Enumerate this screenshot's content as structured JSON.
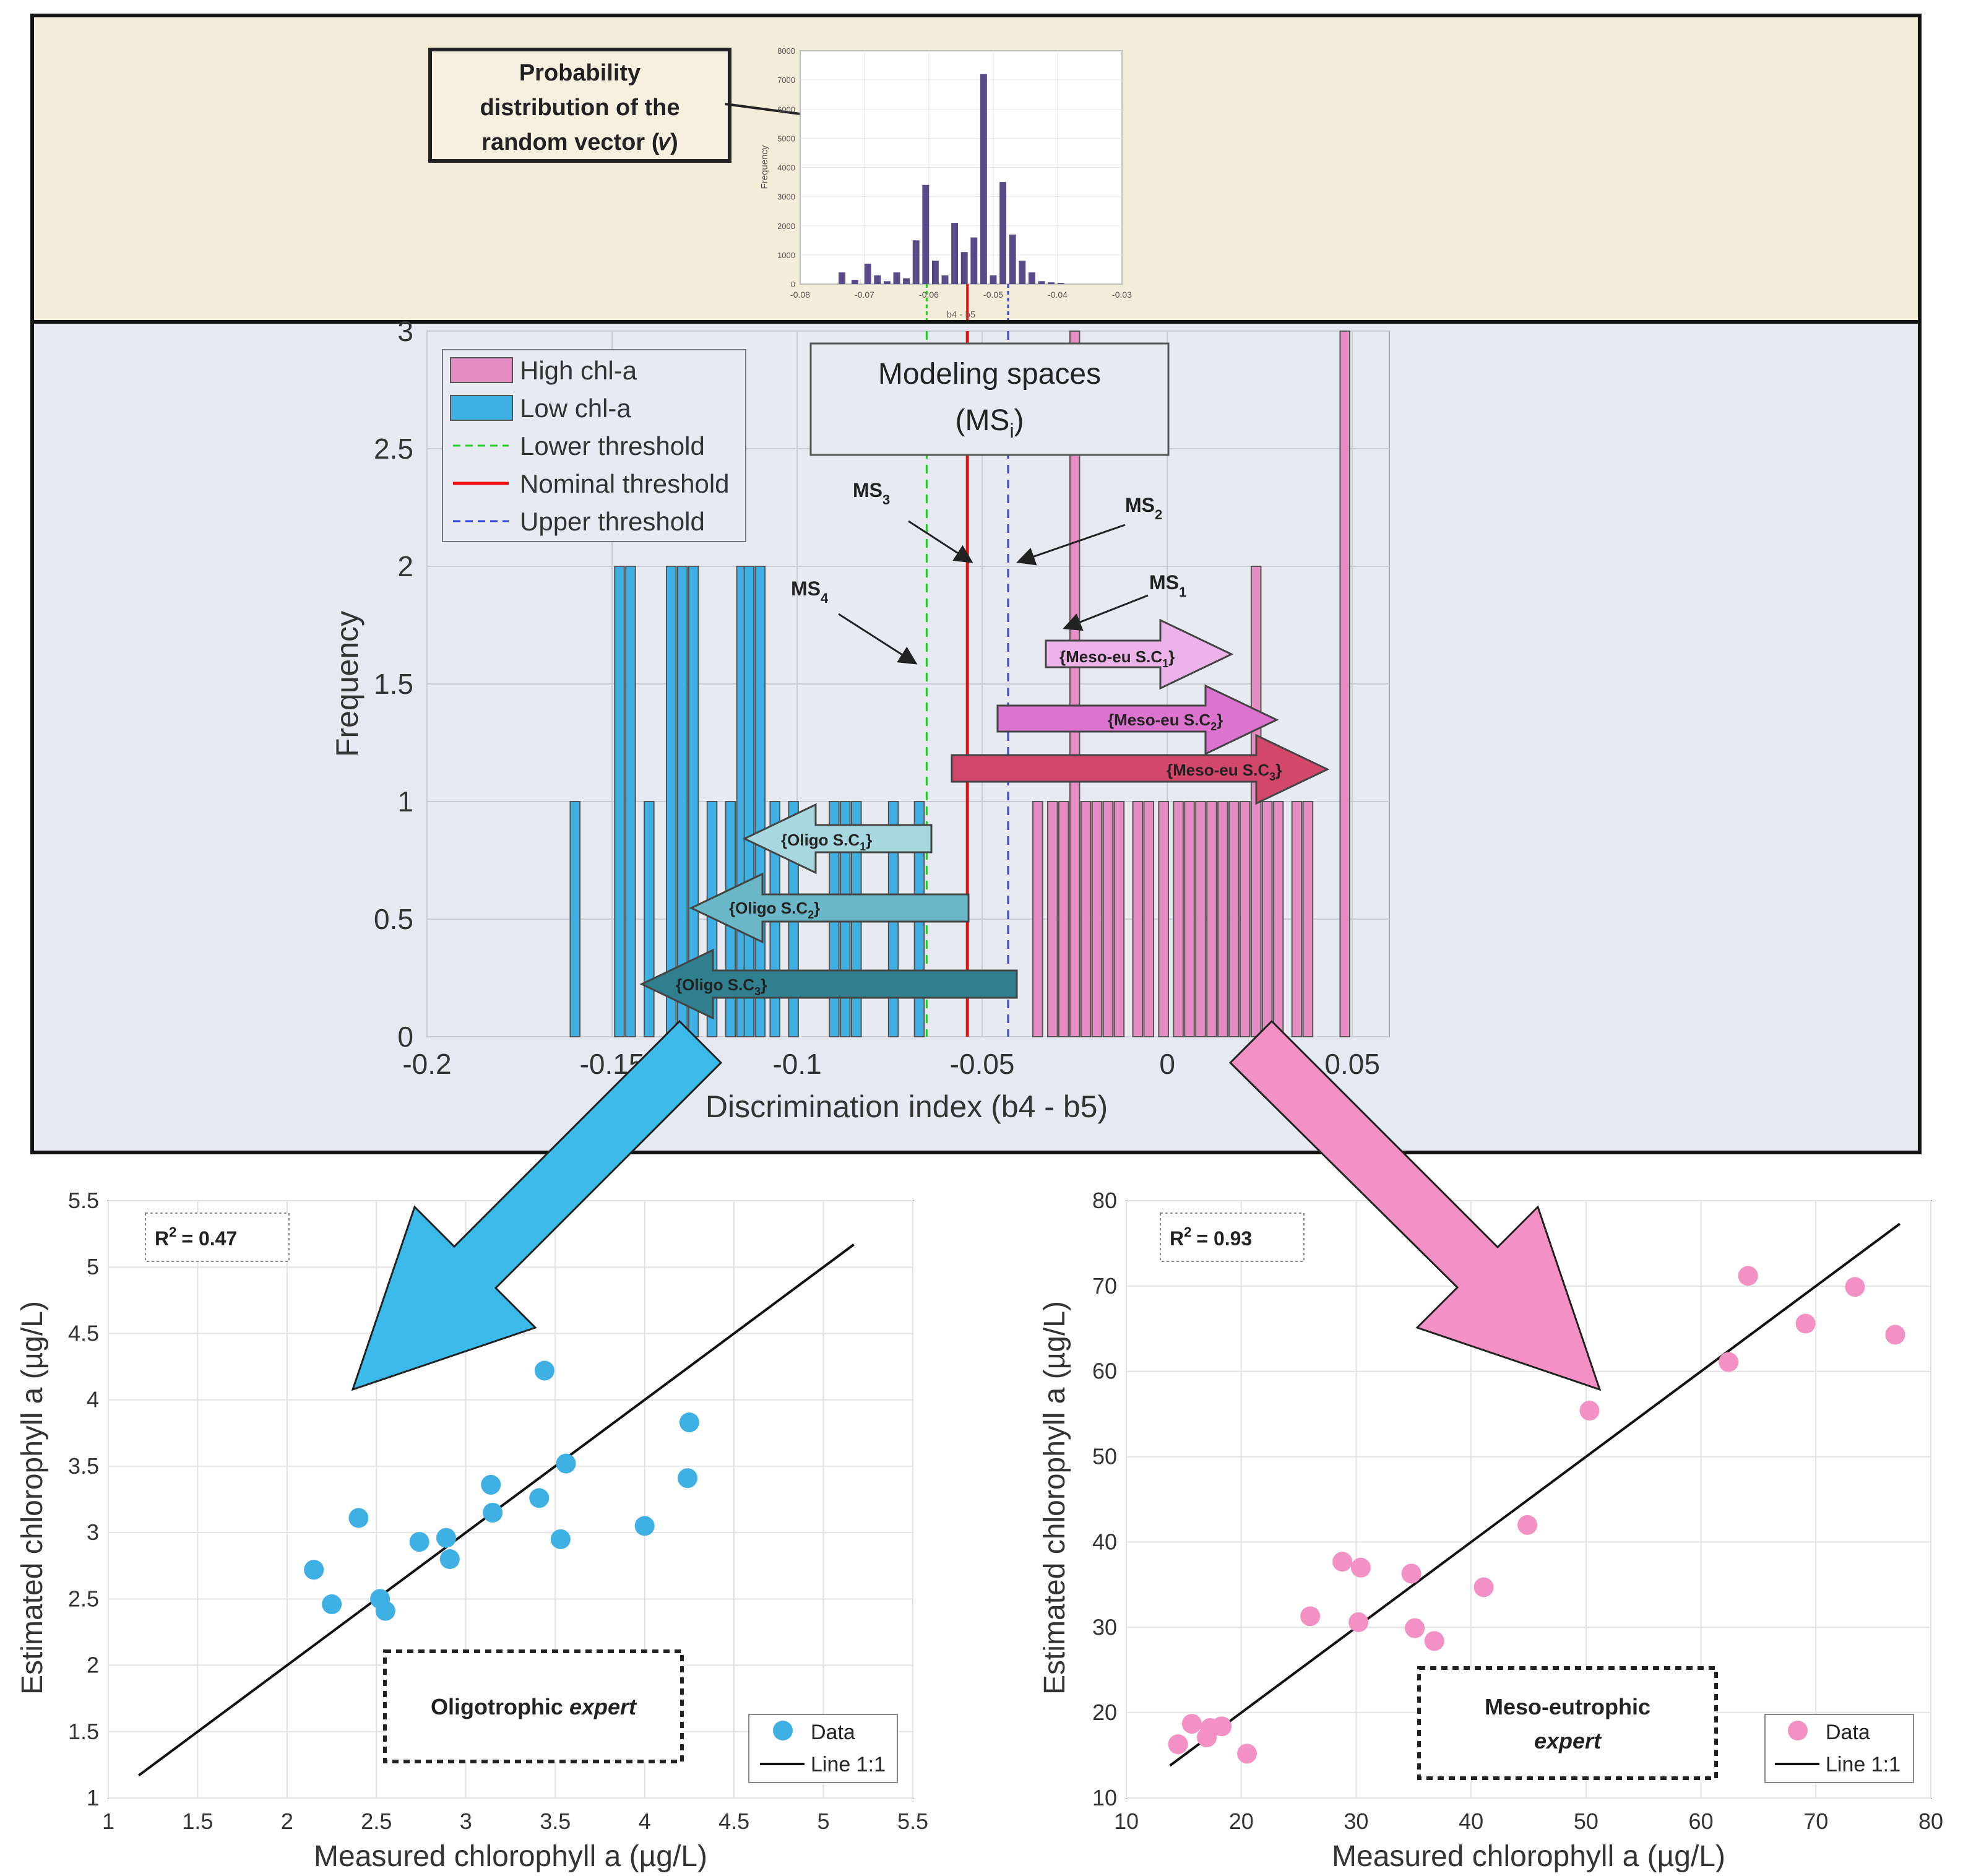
{
  "colors": {
    "high": "#e58dc3",
    "low": "#3fb0e3",
    "lower_threshold": "#22cc22",
    "nominal_threshold": "#ee1111",
    "upper_threshold": "#3344dd",
    "small_hist": "#5a4a8a",
    "top_panel_bg": "#f3ecd9",
    "mid_panel_bg": "#e6e9f1"
  },
  "top_panel": {
    "callout": [
      "Probability",
      "distribution of the",
      "random vector (𝑣)"
    ]
  },
  "chart_data": [
    {
      "id": "vector-distribution",
      "type": "bar",
      "xlabel": "b4 - b5",
      "ylabel": "Frequency",
      "xlim": [
        -0.08,
        -0.03
      ],
      "ylim": [
        0,
        8000
      ],
      "xticks": [
        "-0.08",
        "-0.07",
        "-0.06",
        "-0.05",
        "-0.04",
        "-0.03"
      ],
      "yticks": [
        "0",
        "1000",
        "2000",
        "3000",
        "4000",
        "5000",
        "6000",
        "7000",
        "8000"
      ],
      "x": [
        -0.0735,
        -0.0715,
        -0.0695,
        -0.068,
        -0.0665,
        -0.065,
        -0.0635,
        -0.062,
        -0.0605,
        -0.059,
        -0.0575,
        -0.056,
        -0.0545,
        -0.053,
        -0.0515,
        -0.05,
        -0.0485,
        -0.047,
        -0.0455,
        -0.044,
        -0.0425,
        -0.041,
        -0.0395
      ],
      "values": [
        400,
        150,
        700,
        300,
        100,
        400,
        200,
        1500,
        3400,
        800,
        300,
        2100,
        1100,
        1600,
        7200,
        300,
        3500,
        1700,
        800,
        400,
        100,
        60,
        40
      ]
    },
    {
      "id": "discrimination-histogram",
      "type": "bar",
      "xlabel": "Discrimination index (b4 - b5)",
      "ylabel": "Frequency",
      "xlim": [
        -0.2,
        0.06
      ],
      "ylim": [
        0,
        3
      ],
      "xticks": [
        "-0.2",
        "-0.15",
        "-0.1",
        "-0.05",
        "0",
        "0.05"
      ],
      "yticks": [
        "0",
        "0.5",
        "1",
        "1.5",
        "2",
        "2.5",
        "3"
      ],
      "thresholds": {
        "lower": -0.065,
        "nominal": -0.054,
        "upper": -0.043
      },
      "series": [
        {
          "name": "Low chl-a",
          "x": [
            -0.16,
            -0.148,
            -0.145,
            -0.14,
            -0.134,
            -0.131,
            -0.128,
            -0.123,
            -0.118,
            -0.115,
            -0.113,
            -0.11,
            -0.106,
            -0.101,
            -0.09,
            -0.087,
            -0.084,
            -0.074,
            -0.067
          ],
          "values": [
            1,
            2,
            2,
            1,
            2,
            2,
            2,
            1,
            1,
            2,
            2,
            2,
            1,
            1,
            1,
            1,
            1,
            1,
            1
          ]
        },
        {
          "name": "High chl-a",
          "x": [
            -0.035,
            -0.031,
            -0.028,
            -0.025,
            -0.022,
            -0.019,
            -0.016,
            -0.013,
            -0.008,
            -0.005,
            -0.001,
            0.003,
            0.006,
            0.009,
            0.012,
            0.015,
            0.018,
            0.021,
            0.024,
            0.027,
            0.03,
            0.035,
            0.038,
            0.048
          ],
          "values": [
            1,
            1,
            1,
            3,
            1,
            1,
            1,
            1,
            1,
            1,
            1,
            1,
            1,
            1,
            1,
            1,
            1,
            1,
            2,
            1,
            1,
            1,
            1,
            3
          ]
        }
      ],
      "legend": [
        {
          "label": "High chl-a",
          "kind": "patch",
          "key": "high"
        },
        {
          "label": "Low chl-a",
          "kind": "patch",
          "key": "low"
        },
        {
          "label": "Lower threshold",
          "kind": "dash",
          "key": "lower_threshold"
        },
        {
          "label": "Nominal threshold",
          "kind": "line",
          "key": "nominal_threshold"
        },
        {
          "label": "Upper threshold",
          "kind": "dash",
          "key": "upper_threshold"
        }
      ],
      "annotations": {
        "box_title": "Modeling spaces",
        "box_sub": "(MS",
        "box_sub_index": "i",
        "ms_base": "MS",
        "ms": [
          {
            "idx": "3"
          },
          {
            "idx": "2"
          },
          {
            "idx": "1"
          },
          {
            "idx": "4"
          }
        ],
        "arrows": [
          {
            "text": "{Meso-eu S.C",
            "sub": "1",
            "end": "}",
            "color": "#ecb3e8"
          },
          {
            "text": "{Meso-eu S.C",
            "sub": "2",
            "end": "}",
            "color": "#dc74cf"
          },
          {
            "text": "{Meso-eu S.C",
            "sub": "3",
            "end": "}",
            "color": "#d3476a"
          },
          {
            "text": "{Oligo S.C",
            "sub": "1",
            "end": "}",
            "color": "#a8d8df"
          },
          {
            "text": "{Oligo S.C",
            "sub": "2",
            "end": "}",
            "color": "#6ab8c7"
          },
          {
            "text": "{Oligo S.C",
            "sub": "3",
            "end": "}",
            "color": "#2f7f8e"
          }
        ]
      }
    },
    {
      "id": "oligotrophic-scatter",
      "type": "scatter",
      "xlabel": "Measured chlorophyll a (µg/L)",
      "ylabel": "Estimated chlorophyll a (µg/L)",
      "xlim": [
        1,
        5.5
      ],
      "ylim": [
        1,
        5.5
      ],
      "xticks": [
        "1",
        "1.5",
        "2",
        "2.5",
        "3",
        "3.5",
        "4",
        "4.5",
        "5",
        "5.5"
      ],
      "yticks": [
        "1",
        "1.5",
        "2",
        "2.5",
        "3",
        "3.5",
        "4",
        "4.5",
        "5",
        "5.5"
      ],
      "x": [
        2.15,
        2.25,
        2.4,
        2.52,
        2.55,
        2.74,
        2.89,
        2.91,
        3.14,
        3.15,
        3.41,
        3.44,
        3.53,
        3.56,
        4.0,
        4.24,
        4.25
      ],
      "y": [
        2.72,
        2.46,
        3.11,
        2.5,
        2.41,
        2.93,
        2.96,
        2.8,
        3.36,
        3.15,
        3.26,
        4.22,
        2.95,
        3.52,
        3.05,
        3.41,
        3.83
      ],
      "line": [
        [
          1.17,
          1.17
        ],
        [
          5.17,
          5.17
        ]
      ],
      "r2_base": "R",
      "r2_exp": "2",
      "r2_value": "= 0.47",
      "expert": "Oligotrophic",
      "expert_italic": "expert",
      "legend": [
        "Data",
        "Line 1:1"
      ]
    },
    {
      "id": "meso-eutrophic-scatter",
      "type": "scatter",
      "xlabel": "Measured chlorophyll a (µg/L)",
      "ylabel": "Estimated chlorophyll a (µg/L)",
      "xlim": [
        10,
        80
      ],
      "ylim": [
        10,
        80
      ],
      "xticks": [
        "10",
        "20",
        "30",
        "40",
        "50",
        "60",
        "70",
        "80"
      ],
      "yticks": [
        "10",
        "20",
        "30",
        "40",
        "50",
        "60",
        "70",
        "80"
      ],
      "x": [
        14.5,
        15.7,
        17.0,
        17.3,
        18.3,
        20.5,
        26.0,
        28.8,
        30.2,
        30.4,
        34.8,
        35.1,
        36.8,
        41.1,
        44.9,
        50.3,
        62.4,
        64.1,
        69.1,
        73.4,
        76.9
      ],
      "y": [
        16.3,
        18.7,
        17.1,
        18.2,
        18.4,
        15.2,
        31.3,
        37.7,
        30.6,
        37.0,
        36.3,
        29.9,
        28.4,
        34.7,
        42.0,
        55.4,
        61.1,
        71.2,
        65.6,
        69.9,
        64.3
      ],
      "line": [
        [
          13.8,
          13.8
        ],
        [
          77.3,
          77.3
        ]
      ],
      "r2_base": "R",
      "r2_exp": "2",
      "r2_value": "= 0.93",
      "expert": "Meso-eutrophic",
      "expert_italic": "expert",
      "legend": [
        "Data",
        "Line 1:1"
      ]
    }
  ]
}
